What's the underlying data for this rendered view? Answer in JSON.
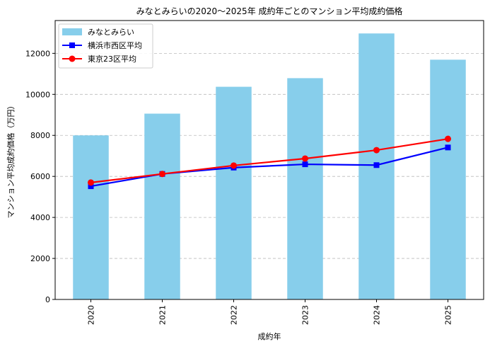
{
  "chart_data": {
    "type": "bar",
    "title": "みなとみらいの2020〜2025年 成約年ごとのマンション平均成約価格",
    "xlabel": "成約年",
    "ylabel": "マンション平均成約価格（万円）",
    "categories": [
      "2020",
      "2021",
      "2022",
      "2023",
      "2024",
      "2025"
    ],
    "ylim": [
      0,
      13600
    ],
    "yticks": [
      0,
      2000,
      4000,
      6000,
      8000,
      10000,
      12000
    ],
    "grid": "y dashed",
    "legend_position": "top-left",
    "series": [
      {
        "name": "みなとみらい",
        "kind": "bar",
        "color": "#87ceeb",
        "values": [
          8000,
          9060,
          10370,
          10790,
          12970,
          11690
        ]
      },
      {
        "name": "横浜市西区平均",
        "kind": "line",
        "marker": "square",
        "color": "#0000ff",
        "values": [
          5520,
          6120,
          6430,
          6590,
          6550,
          7410
        ]
      },
      {
        "name": "東京23区平均",
        "kind": "line",
        "marker": "circle",
        "color": "#ff0000",
        "values": [
          5700,
          6120,
          6530,
          6870,
          7280,
          7830
        ]
      }
    ]
  }
}
